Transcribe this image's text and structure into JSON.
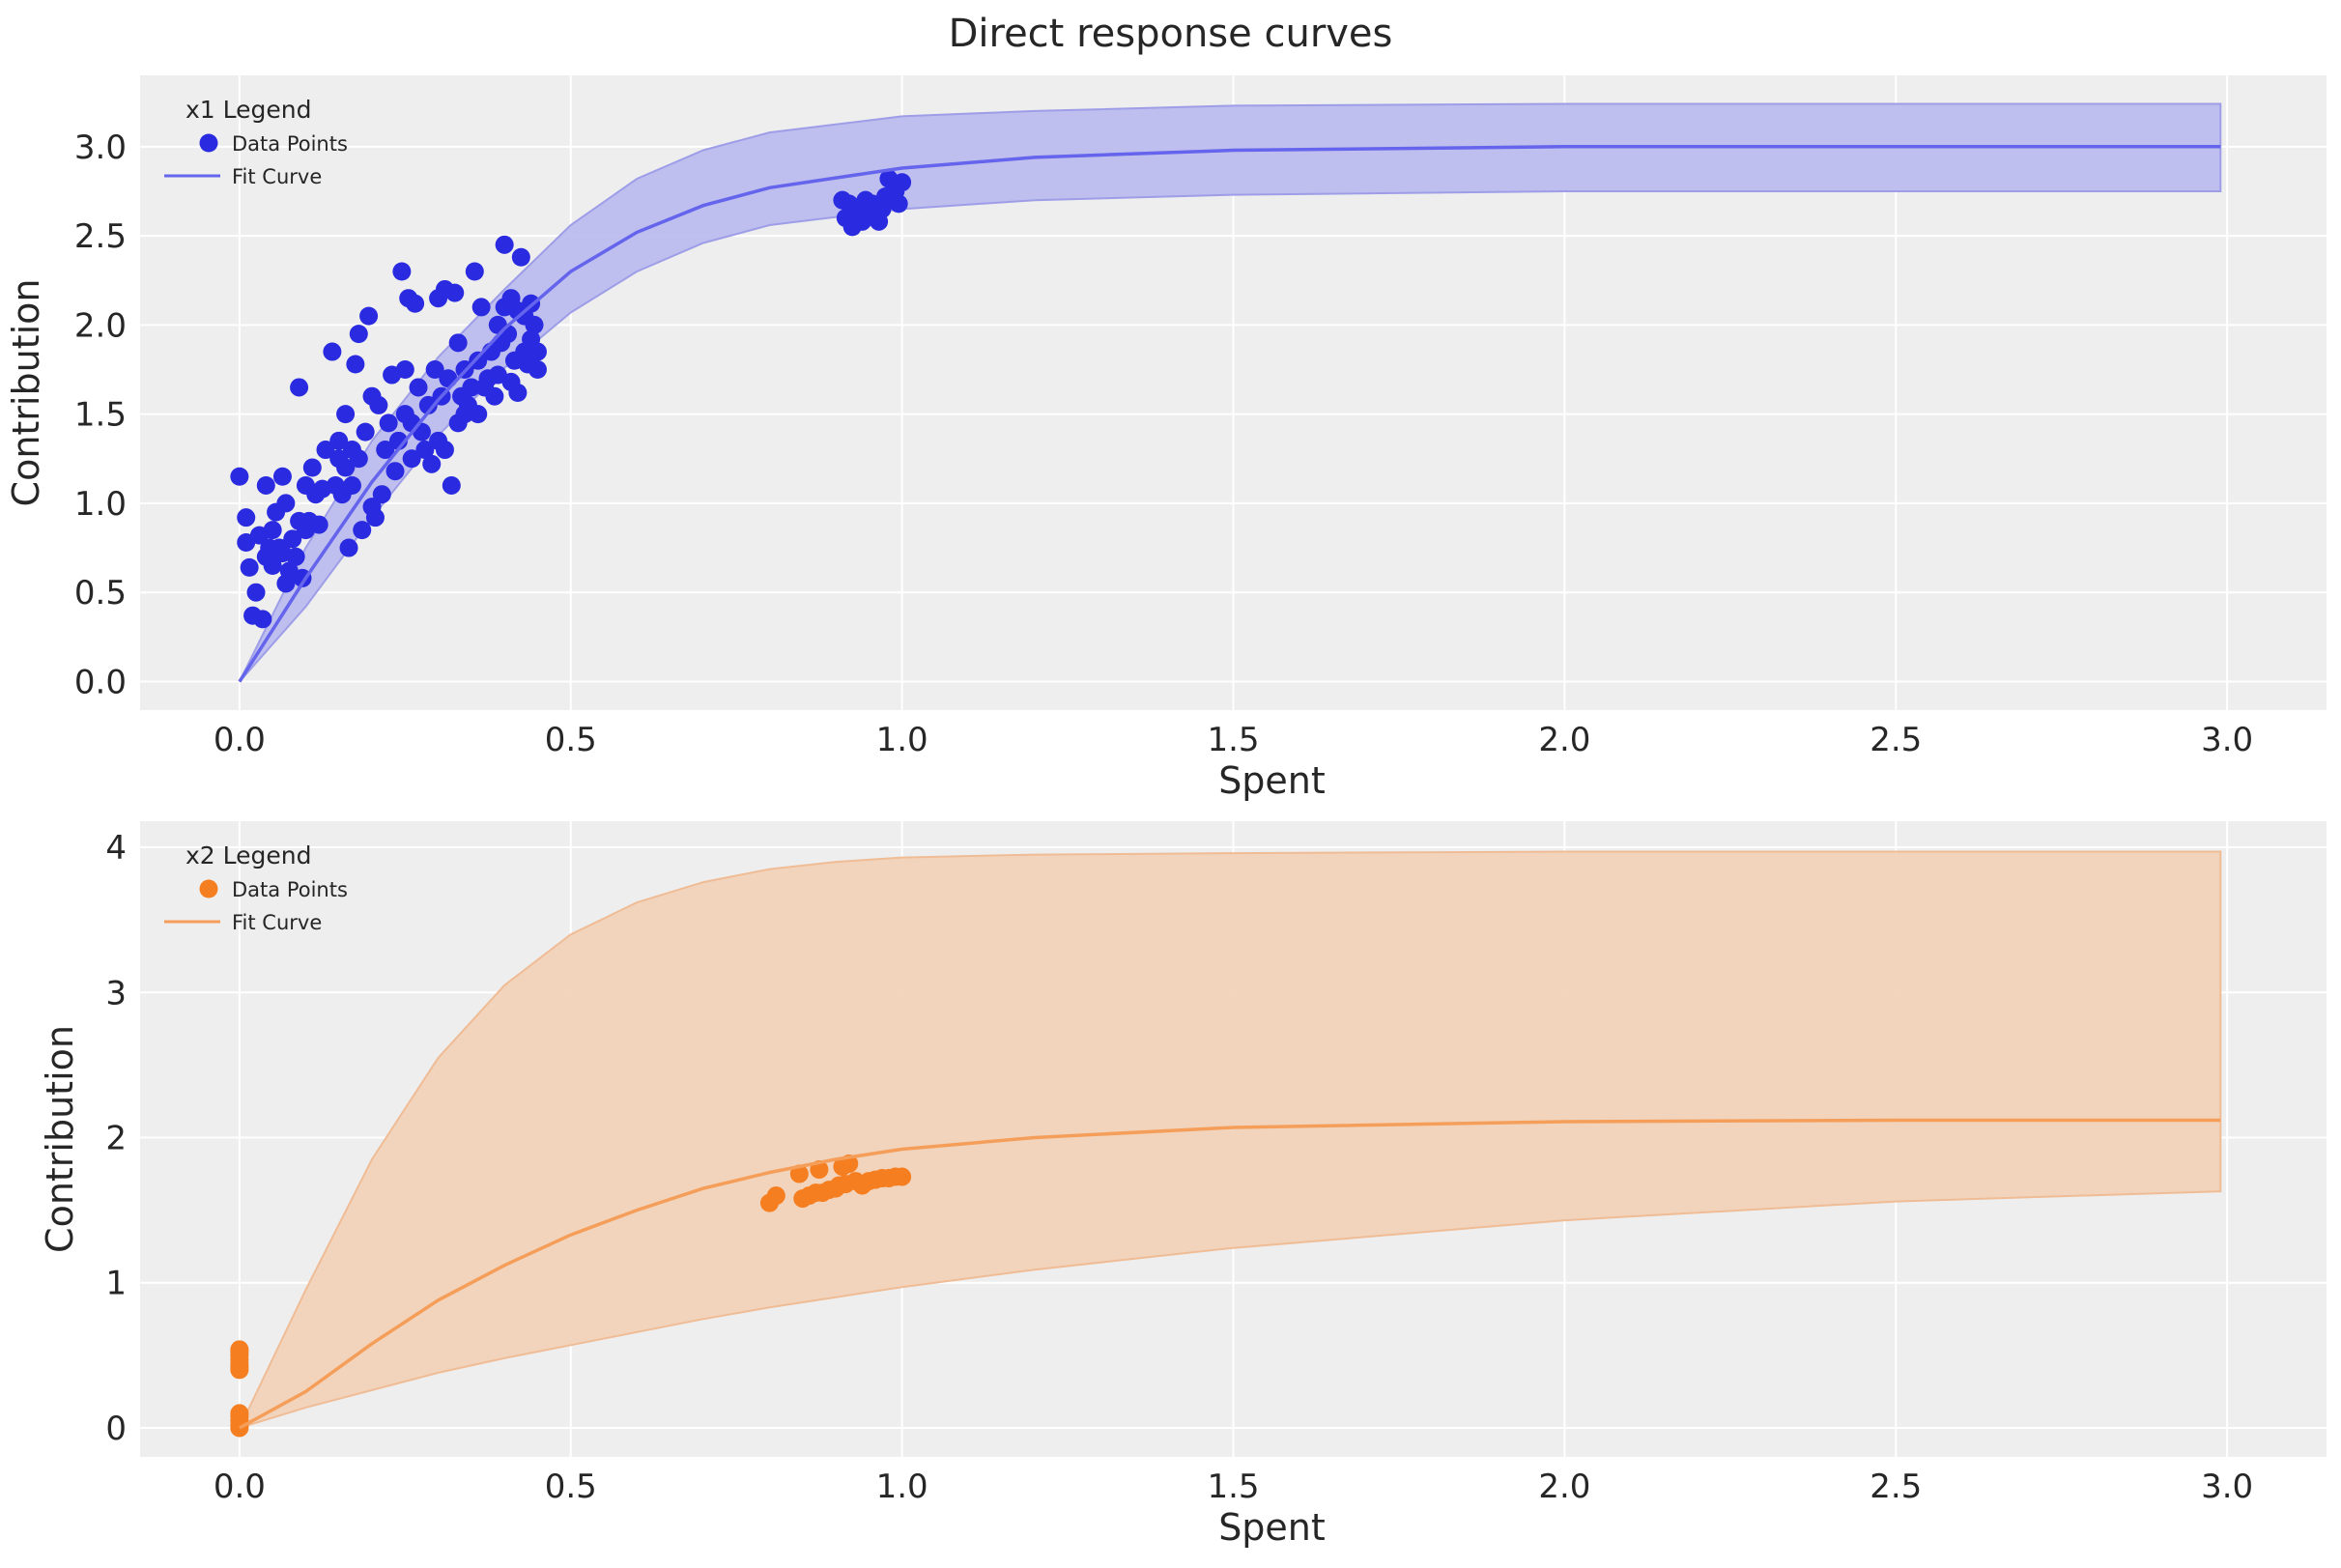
{
  "figure": {
    "title": "Direct response curves"
  },
  "chart_data": [
    {
      "type": "scatter",
      "id": "x1",
      "xlabel": "Spent",
      "ylabel": "Contribution",
      "xlim": [
        -0.15,
        3.15
      ],
      "ylim": [
        -0.16,
        3.4
      ],
      "xticks": [
        "0.0",
        "0.5",
        "1.0",
        "1.5",
        "2.0",
        "2.5",
        "3.0"
      ],
      "xtick_values": [
        0,
        0.5,
        1,
        1.5,
        2,
        2.5,
        3
      ],
      "yticks": [
        "0.0",
        "0.5",
        "1.0",
        "1.5",
        "2.0",
        "2.5",
        "3.0"
      ],
      "ytick_values": [
        0,
        0.5,
        1,
        1.5,
        2,
        2.5,
        3
      ],
      "grid": true,
      "legend": {
        "title": "x1 Legend",
        "placement": "top-left",
        "entries": [
          "Data Points",
          "Fit Curve"
        ]
      },
      "colors": {
        "points": "#2a2ae0",
        "curve": "#6464ec",
        "band": "#b8b8ee",
        "band_edge": "#9e9ee8"
      },
      "curve": {
        "name": "Fit Curve",
        "x": [
          0,
          0.1,
          0.2,
          0.3,
          0.4,
          0.5,
          0.6,
          0.7,
          0.8,
          1.0,
          1.2,
          1.5,
          2.0,
          2.5,
          2.99
        ],
        "y": [
          0,
          0.58,
          1.12,
          1.58,
          1.98,
          2.3,
          2.52,
          2.67,
          2.77,
          2.88,
          2.94,
          2.98,
          3.0,
          3.0,
          3.0
        ],
        "y_lower": [
          0,
          0.42,
          0.92,
          1.38,
          1.76,
          2.07,
          2.3,
          2.46,
          2.56,
          2.65,
          2.7,
          2.73,
          2.75,
          2.75,
          2.75
        ],
        "y_upper": [
          0,
          0.75,
          1.35,
          1.82,
          2.2,
          2.56,
          2.82,
          2.98,
          3.08,
          3.17,
          3.2,
          3.23,
          3.24,
          3.24,
          3.24
        ]
      },
      "points": {
        "name": "Data Points",
        "x": [
          0.0,
          0.01,
          0.01,
          0.015,
          0.02,
          0.025,
          0.03,
          0.035,
          0.04,
          0.04,
          0.045,
          0.05,
          0.05,
          0.055,
          0.06,
          0.065,
          0.065,
          0.07,
          0.07,
          0.075,
          0.08,
          0.085,
          0.09,
          0.09,
          0.095,
          0.1,
          0.1,
          0.105,
          0.11,
          0.115,
          0.12,
          0.125,
          0.13,
          0.14,
          0.145,
          0.15,
          0.15,
          0.155,
          0.16,
          0.16,
          0.165,
          0.17,
          0.17,
          0.175,
          0.18,
          0.18,
          0.185,
          0.19,
          0.195,
          0.2,
          0.2,
          0.205,
          0.21,
          0.215,
          0.22,
          0.225,
          0.23,
          0.235,
          0.24,
          0.245,
          0.25,
          0.25,
          0.255,
          0.26,
          0.26,
          0.265,
          0.27,
          0.275,
          0.28,
          0.285,
          0.29,
          0.295,
          0.3,
          0.3,
          0.305,
          0.31,
          0.31,
          0.315,
          0.32,
          0.325,
          0.33,
          0.33,
          0.335,
          0.34,
          0.34,
          0.345,
          0.35,
          0.355,
          0.36,
          0.36,
          0.365,
          0.37,
          0.375,
          0.38,
          0.385,
          0.39,
          0.39,
          0.395,
          0.4,
          0.4,
          0.405,
          0.41,
          0.41,
          0.415,
          0.42,
          0.42,
          0.425,
          0.43,
          0.43,
          0.435,
          0.44,
          0.44,
          0.445,
          0.45,
          0.45,
          0.91,
          0.915,
          0.92,
          0.925,
          0.93,
          0.935,
          0.94,
          0.945,
          0.95,
          0.955,
          0.96,
          0.965,
          0.97,
          0.975,
          0.98,
          0.985,
          0.99,
          0.995,
          1.0
        ],
        "y": [
          1.15,
          0.92,
          0.78,
          0.64,
          0.37,
          0.5,
          0.82,
          0.35,
          1.1,
          0.7,
          0.75,
          0.85,
          0.65,
          0.95,
          0.75,
          1.15,
          0.72,
          1.0,
          0.55,
          0.62,
          0.8,
          0.7,
          1.65,
          0.9,
          0.58,
          1.1,
          0.85,
          0.9,
          1.2,
          1.05,
          0.88,
          1.08,
          1.3,
          1.85,
          1.1,
          1.25,
          1.35,
          1.05,
          1.5,
          1.2,
          0.75,
          1.1,
          1.3,
          1.78,
          1.95,
          1.25,
          0.85,
          1.4,
          2.05,
          1.6,
          0.98,
          0.92,
          1.55,
          1.05,
          1.3,
          1.45,
          1.72,
          1.18,
          1.35,
          2.3,
          1.75,
          1.5,
          2.15,
          1.25,
          1.45,
          2.12,
          1.65,
          1.4,
          1.3,
          1.55,
          1.22,
          1.75,
          1.35,
          2.15,
          1.6,
          2.2,
          1.3,
          1.7,
          1.1,
          2.18,
          1.45,
          1.9,
          1.6,
          1.75,
          1.5,
          1.55,
          1.65,
          2.3,
          1.8,
          1.5,
          2.1,
          1.65,
          1.7,
          1.85,
          1.6,
          2.0,
          1.72,
          1.9,
          2.45,
          2.1,
          1.95,
          1.68,
          2.15,
          1.8,
          2.08,
          1.62,
          2.38,
          1.85,
          2.05,
          1.78,
          2.12,
          1.92,
          2.0,
          1.75,
          1.85,
          2.7,
          2.6,
          2.68,
          2.55,
          2.62,
          2.65,
          2.58,
          2.7,
          2.62,
          2.68,
          2.6,
          2.58,
          2.65,
          2.72,
          2.82,
          2.7,
          2.75,
          2.68,
          2.8
        ]
      }
    },
    {
      "type": "scatter",
      "id": "x2",
      "xlabel": "Spent",
      "ylabel": "Contribution",
      "xlim": [
        -0.15,
        3.15
      ],
      "ylim": [
        -0.2,
        4.18
      ],
      "xticks": [
        "0.0",
        "0.5",
        "1.0",
        "1.5",
        "2.0",
        "2.5",
        "3.0"
      ],
      "xtick_values": [
        0,
        0.5,
        1,
        1.5,
        2,
        2.5,
        3
      ],
      "yticks": [
        "0",
        "1",
        "2",
        "3",
        "4"
      ],
      "ytick_values": [
        0,
        1,
        2,
        3,
        4
      ],
      "grid": true,
      "legend": {
        "title": "x2 Legend",
        "placement": "top-left",
        "entries": [
          "Data Points",
          "Fit Curve"
        ]
      },
      "colors": {
        "points": "#f57e20",
        "curve": "#f59e5a",
        "band": "#f2d0b6",
        "band_edge": "#efbc96"
      },
      "curve": {
        "name": "Fit Curve",
        "x": [
          0,
          0.1,
          0.2,
          0.3,
          0.4,
          0.5,
          0.6,
          0.7,
          0.8,
          0.9,
          1.0,
          1.2,
          1.5,
          2.0,
          2.5,
          2.99
        ],
        "y": [
          0,
          0.25,
          0.58,
          0.88,
          1.12,
          1.33,
          1.5,
          1.65,
          1.76,
          1.85,
          1.92,
          2.0,
          2.07,
          2.11,
          2.12,
          2.12
        ],
        "y_lower": [
          0,
          0.14,
          0.26,
          0.38,
          0.48,
          0.57,
          0.66,
          0.75,
          0.83,
          0.9,
          0.97,
          1.09,
          1.24,
          1.43,
          1.56,
          1.63
        ],
        "y_upper": [
          0,
          0.95,
          1.85,
          2.55,
          3.05,
          3.4,
          3.62,
          3.76,
          3.85,
          3.9,
          3.93,
          3.95,
          3.96,
          3.97,
          3.97,
          3.97
        ]
      },
      "points": {
        "name": "Data Points",
        "x": [
          0,
          0,
          0,
          0,
          0,
          0,
          0,
          0,
          0,
          0,
          0,
          0,
          0.8,
          0.81,
          0.845,
          0.85,
          0.86,
          0.87,
          0.875,
          0.88,
          0.89,
          0.9,
          0.905,
          0.91,
          0.915,
          0.92,
          0.93,
          0.94,
          0.95,
          0.96,
          0.97,
          0.98,
          0.99,
          1.0
        ],
        "y": [
          0,
          0.02,
          0.05,
          0.08,
          0.1,
          0.4,
          0.44,
          0.47,
          0.5,
          0.52,
          0.54,
          0.42,
          1.55,
          1.6,
          1.75,
          1.58,
          1.6,
          1.62,
          1.78,
          1.62,
          1.64,
          1.65,
          1.67,
          1.8,
          1.68,
          1.82,
          1.7,
          1.67,
          1.7,
          1.71,
          1.72,
          1.72,
          1.73,
          1.73
        ]
      }
    }
  ]
}
